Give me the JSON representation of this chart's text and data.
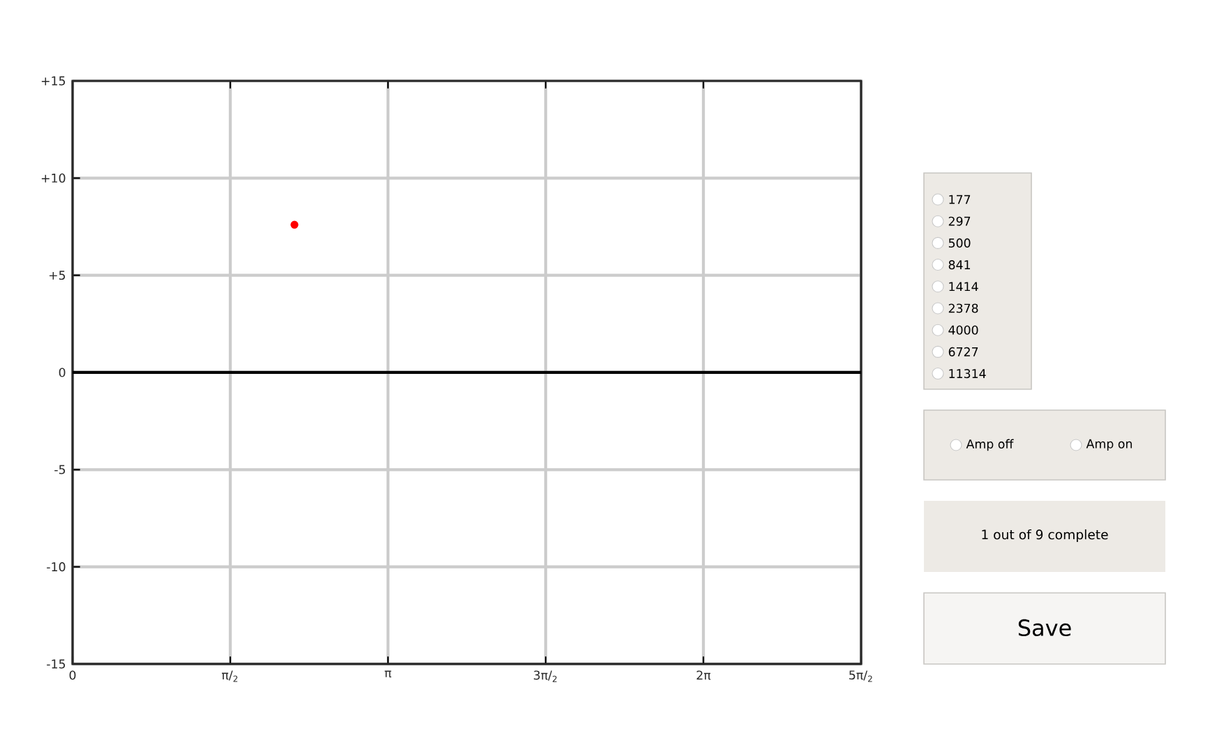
{
  "chart_data": [
    {
      "type": "scatter",
      "x": [
        2.21
      ],
      "values": [
        7.6
      ],
      "color": "#ff0000",
      "xlim": [
        0,
        7.854
      ],
      "ylim": [
        -15,
        15
      ],
      "xticks": [
        0,
        {
          "value": 1.5708,
          "label": "π/$_{2}$"
        },
        {
          "value": 3.1416,
          "label": "π"
        },
        {
          "value": 4.7124,
          "label": "3π/$_{2}$"
        },
        {
          "value": 6.2832,
          "label": "2π"
        },
        {
          "value": 7.854,
          "label": "5π/$_{2}$"
        }
      ],
      "yticks": [
        {
          "value": -15,
          "label": "-15"
        },
        {
          "value": -10,
          "label": "-10"
        },
        {
          "value": -5,
          "label": "-5"
        },
        0,
        {
          "value": 5,
          "label": "+5"
        },
        {
          "value": 10,
          "label": "+10"
        },
        {
          "value": 15,
          "label": "+15"
        }
      ],
      "grid": true,
      "ref_lines": [
        {
          "axis": "y",
          "value": 0,
          "color": "#000000"
        }
      ]
    },
    {
      "type": "other",
      "annotations": [
        "177",
        "297",
        "500",
        "841",
        "1414",
        "2378",
        "4000",
        "6727",
        "11314",
        "Amp off",
        "Amp on",
        "1 out of 9 complete",
        "Save"
      ]
    }
  ]
}
